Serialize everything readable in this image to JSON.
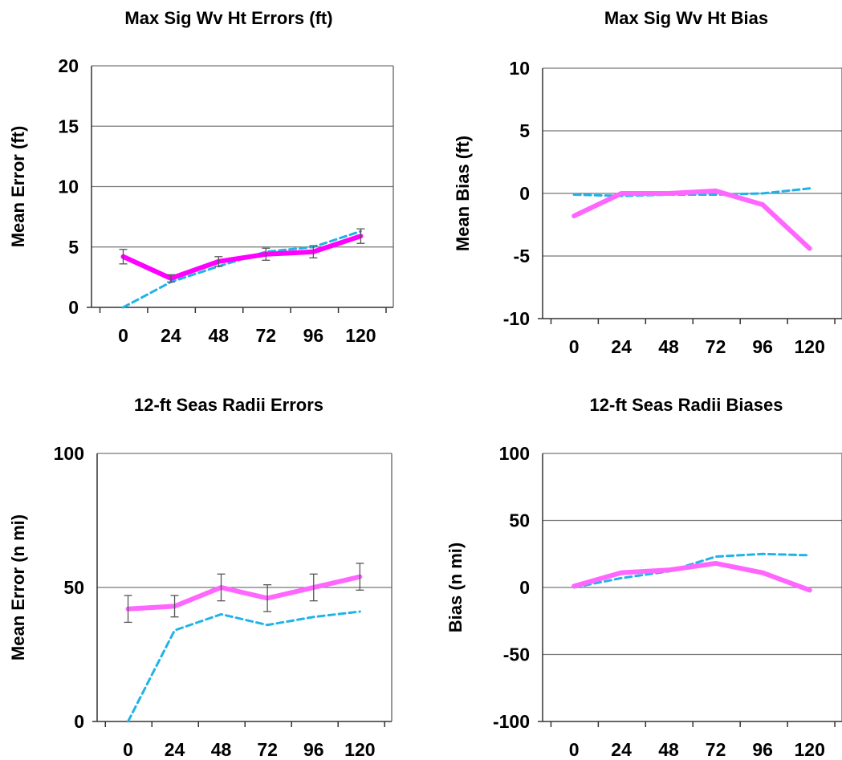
{
  "chart_data": [
    {
      "type": "line",
      "title": "Max Sig Wv Ht Errors (ft)",
      "xlabel": "",
      "ylabel": "Mean Error (ft)",
      "categories": [
        "0",
        "24",
        "48",
        "72",
        "96",
        "120"
      ],
      "ylim": [
        0,
        20
      ],
      "yticks": [
        "0",
        "5",
        "10",
        "15",
        "20"
      ],
      "grid": true,
      "series": [
        {
          "style": "solid",
          "color": "#ff00ff",
          "values": [
            4.2,
            2.4,
            3.8,
            4.4,
            4.6,
            5.9
          ],
          "error_bars": [
            0.6,
            0.3,
            0.4,
            0.5,
            0.5,
            0.6
          ]
        },
        {
          "style": "dashed",
          "color": "#1fb3e8",
          "values": [
            0.0,
            2.1,
            3.4,
            4.6,
            5.0,
            6.3
          ]
        }
      ]
    },
    {
      "type": "line",
      "title": "Max Sig Wv Ht Bias",
      "xlabel": "",
      "ylabel": "Mean Bias (ft)",
      "categories": [
        "0",
        "24",
        "48",
        "72",
        "96",
        "120"
      ],
      "ylim": [
        -10,
        10
      ],
      "yticks": [
        "-10",
        "-5",
        "0",
        "5",
        "10"
      ],
      "grid": true,
      "series": [
        {
          "style": "solid",
          "color": "#ff66ff",
          "values": [
            -1.8,
            0.0,
            0.0,
            0.2,
            -0.9,
            -4.4
          ]
        },
        {
          "style": "dashed",
          "color": "#1fb3e8",
          "values": [
            -0.1,
            -0.2,
            -0.1,
            -0.1,
            0.0,
            0.4
          ]
        }
      ]
    },
    {
      "type": "line",
      "title": "12-ft Seas Radii Errors",
      "xlabel": "",
      "ylabel": "Mean Error (n mi)",
      "categories": [
        "0",
        "24",
        "48",
        "72",
        "96",
        "120"
      ],
      "ylim": [
        0,
        100
      ],
      "yticks": [
        "0",
        "50",
        "100"
      ],
      "grid": true,
      "series": [
        {
          "style": "solid",
          "color": "#ff66ff",
          "values": [
            42,
            43,
            50,
            46,
            50,
            54
          ],
          "error_bars": [
            5,
            4,
            5,
            5,
            5,
            5
          ]
        },
        {
          "style": "dashed",
          "color": "#1fb3e8",
          "values": [
            0,
            34,
            40,
            36,
            39,
            41
          ]
        }
      ]
    },
    {
      "type": "line",
      "title": "12-ft Seas Radii Biases",
      "xlabel": "",
      "ylabel": "Bias (n mi)",
      "categories": [
        "0",
        "24",
        "48",
        "72",
        "96",
        "120"
      ],
      "ylim": [
        -100,
        100
      ],
      "yticks": [
        "-100",
        "-50",
        "0",
        "50",
        "100"
      ],
      "grid": true,
      "series": [
        {
          "style": "solid",
          "color": "#ff66ff",
          "values": [
            1,
            11,
            13,
            18,
            11,
            -2
          ]
        },
        {
          "style": "dashed",
          "color": "#1fb3e8",
          "values": [
            0,
            7,
            12,
            23,
            25,
            24
          ]
        }
      ]
    }
  ]
}
